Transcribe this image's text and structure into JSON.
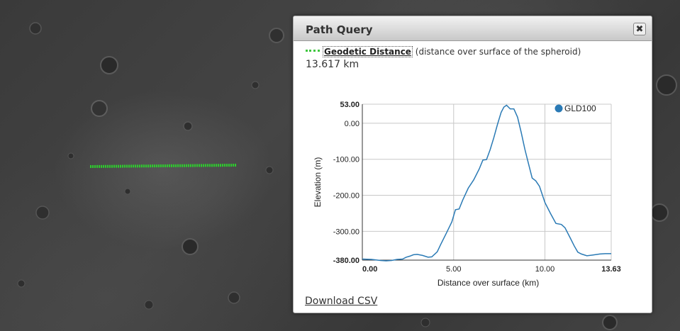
{
  "map": {
    "path_color": "#2ecc2e"
  },
  "panel": {
    "title": "Path Query",
    "close_icon": "close-icon",
    "close_glyph": "✖",
    "legend_label": "Geodetic Distance",
    "legend_description": "(distance over surface of the spheroid)",
    "legend_line_color": "#3ec63e",
    "distance_value": "13.617 km",
    "download_label": "Download CSV"
  },
  "chart_data": {
    "type": "line",
    "xlabel": "Distance over surface (km)",
    "ylabel": "Elevation (m)",
    "xlim": [
      0,
      13.63
    ],
    "ylim": [
      -380,
      53
    ],
    "x_ticks": [
      "0.00",
      "5.00",
      "10.00",
      "13.63"
    ],
    "y_ticks": [
      "53.00",
      "0.00",
      "-100.00",
      "-200.00",
      "-300.00",
      "-380.00"
    ],
    "grid": true,
    "legend_position": "top-right",
    "series": [
      {
        "name": "GLD100",
        "color": "#2a7ab5",
        "x": [
          0,
          0.5,
          1.0,
          1.3,
          1.6,
          1.9,
          2.2,
          2.4,
          2.6,
          2.8,
          3.0,
          3.3,
          3.6,
          3.8,
          3.95,
          4.1,
          4.3,
          4.6,
          4.9,
          5.1,
          5.3,
          5.5,
          5.8,
          6.1,
          6.4,
          6.6,
          6.8,
          7.0,
          7.2,
          7.4,
          7.6,
          7.75,
          7.9,
          8.1,
          8.3,
          8.5,
          8.7,
          8.9,
          9.1,
          9.3,
          9.5,
          9.7,
          10.0,
          10.3,
          10.6,
          10.9,
          11.1,
          11.4,
          11.6,
          11.8,
          12.0,
          12.3,
          12.6,
          13.0,
          13.3,
          13.63
        ],
        "y": [
          -377,
          -378,
          -381,
          -382,
          -381,
          -378,
          -377,
          -372,
          -369,
          -365,
          -364,
          -367,
          -372,
          -371,
          -364,
          -357,
          -336,
          -305,
          -274,
          -240,
          -238,
          -213,
          -180,
          -157,
          -127,
          -102,
          -101,
          -73,
          -40,
          -3,
          30,
          45,
          50,
          40,
          40,
          17,
          -25,
          -72,
          -112,
          -152,
          -160,
          -175,
          -220,
          -250,
          -278,
          -281,
          -290,
          -320,
          -340,
          -358,
          -363,
          -368,
          -366,
          -363,
          -362,
          -362
        ]
      }
    ]
  }
}
